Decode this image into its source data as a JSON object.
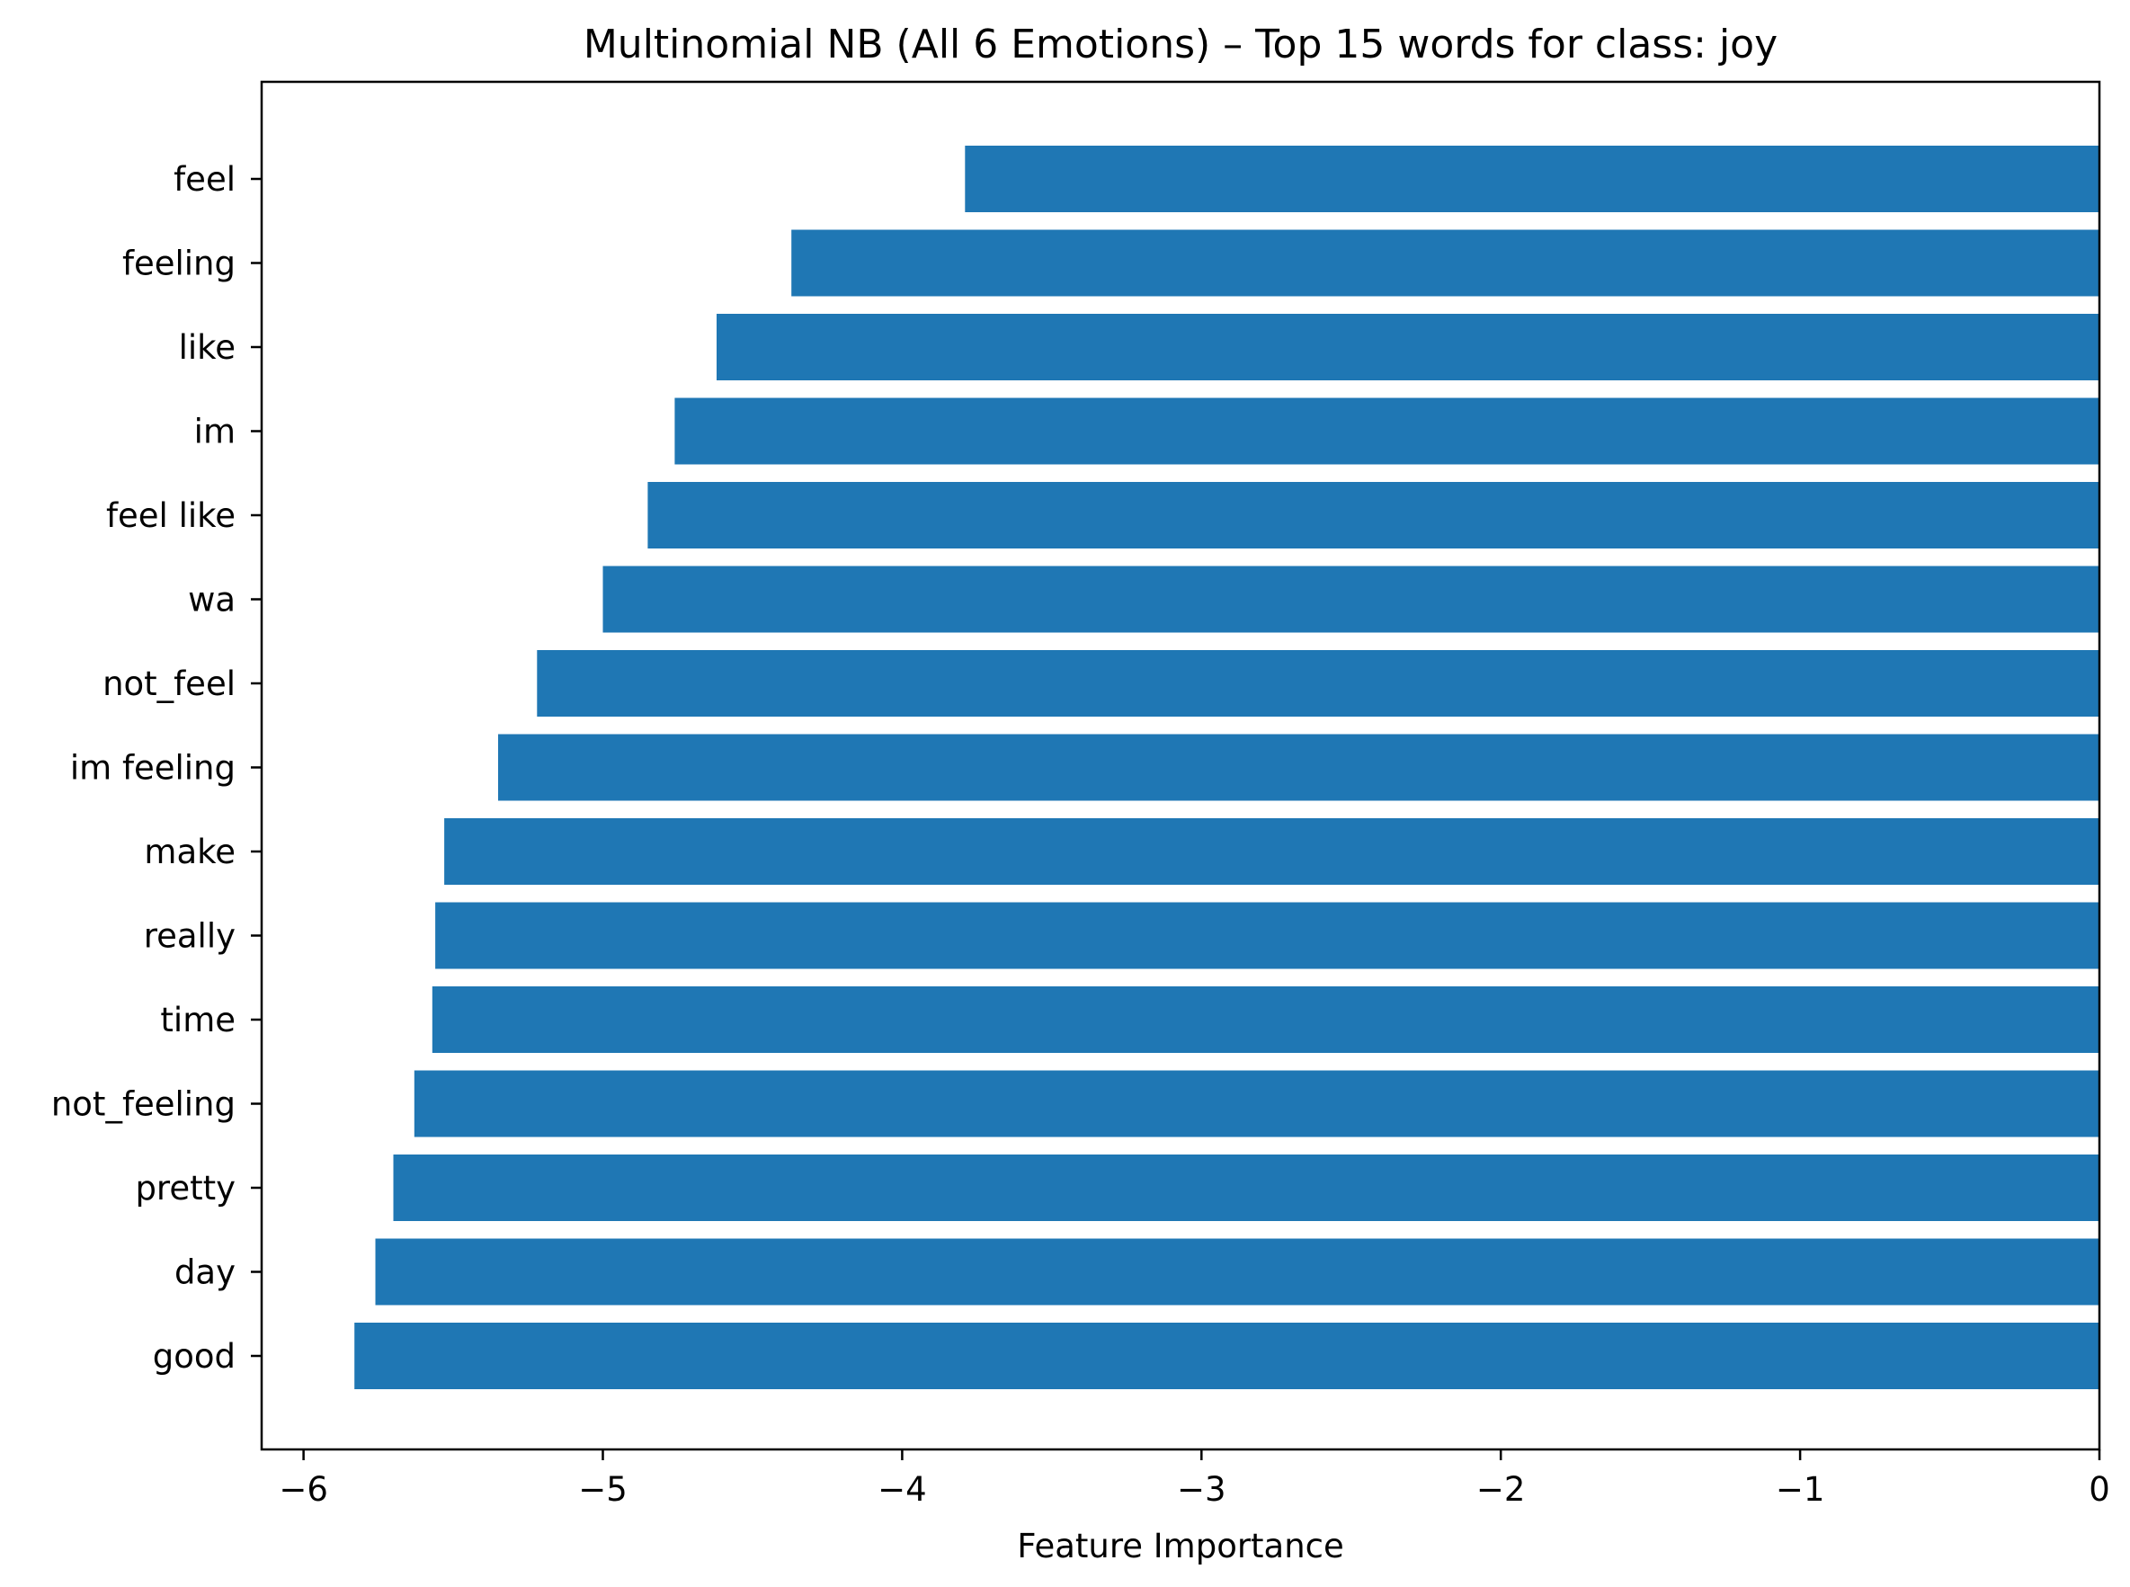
{
  "chart_data": {
    "type": "bar",
    "orientation": "horizontal",
    "title": "Multinomial NB (All 6 Emotions) – Top 15 words for class: joy",
    "xlabel": "Feature Importance",
    "ylabel": "",
    "categories": [
      "feel",
      "feeling",
      "like",
      "im",
      "feel like",
      "wa",
      "not_feel",
      "im feeling",
      "make",
      "really",
      "time",
      "not_feeling",
      "pretty",
      "day",
      "good"
    ],
    "values": [
      -3.79,
      -4.37,
      -4.62,
      -4.76,
      -4.85,
      -5.0,
      -5.22,
      -5.35,
      -5.53,
      -5.56,
      -5.57,
      -5.63,
      -5.7,
      -5.76,
      -5.83
    ],
    "xlim": [
      -6.14,
      0
    ],
    "xticks": [
      -6,
      -5,
      -4,
      -3,
      -2,
      -1,
      0
    ],
    "xtick_labels": [
      "−6",
      "−5",
      "−4",
      "−3",
      "−2",
      "−1",
      "0"
    ],
    "grid": false,
    "legend": "none",
    "bar_color": "#1f77b4"
  }
}
